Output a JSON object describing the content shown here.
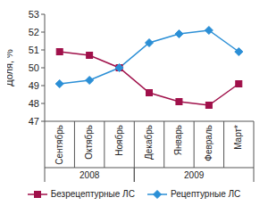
{
  "chart_data": {
    "type": "line",
    "y_label": "Доля, %",
    "categories": [
      "Сентябрь",
      "Октябрь",
      "Ноябрь",
      "Декабрь",
      "Январь",
      "Февраль",
      "Март*"
    ],
    "category_groups": [
      {
        "label": "2008",
        "count": 3
      },
      {
        "label": "2009",
        "count": 4
      }
    ],
    "series": [
      {
        "name": "Безрецептурные ЛС",
        "color": "#a0104a",
        "marker": "square",
        "values": [
          50.9,
          50.7,
          50.0,
          48.6,
          48.1,
          47.9,
          49.1
        ]
      },
      {
        "name": "Рецептурные ЛС",
        "color": "#2b8fd6",
        "marker": "diamond",
        "values": [
          49.1,
          49.3,
          50.0,
          51.4,
          51.9,
          52.1,
          50.9
        ]
      }
    ],
    "ylim": [
      47,
      53
    ],
    "yticks": [
      47,
      48,
      49,
      50,
      51,
      52,
      53
    ],
    "grid": false,
    "legend": "bottom"
  }
}
